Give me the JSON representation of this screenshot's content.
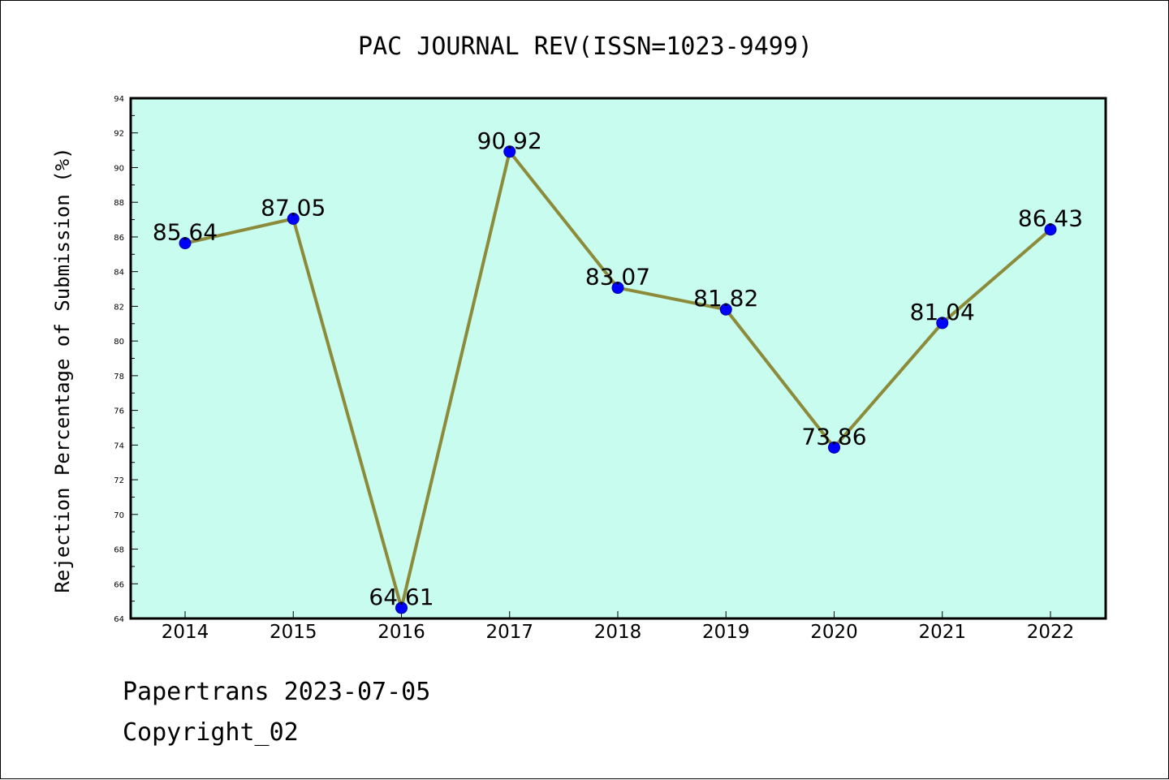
{
  "chart_data": {
    "type": "line",
    "title": "PAC JOURNAL REV(ISSN=1023-9499)",
    "xlabel": "",
    "ylabel": "Rejection Percentage of Submission (%)",
    "categories": [
      "2014",
      "2015",
      "2016",
      "2017",
      "2018",
      "2019",
      "2020",
      "2021",
      "2022"
    ],
    "series": [
      {
        "values": [
          85.64,
          87.05,
          64.61,
          90.92,
          83.07,
          81.82,
          73.86,
          81.04,
          86.43
        ],
        "labels": [
          "85.64",
          "87.05",
          "64.61",
          "90.92",
          "83.07",
          "81.82",
          "73.86",
          "81.04",
          "86.43"
        ]
      }
    ],
    "ylim": [
      64,
      94
    ],
    "yticks": [
      64,
      66,
      68,
      70,
      72,
      74,
      76,
      78,
      80,
      82,
      84,
      86,
      88,
      90,
      92,
      94
    ],
    "grid": false,
    "colors": {
      "plot_background": "#c8fcee",
      "line": "#8b8b3a",
      "marker": "#0000ff"
    }
  },
  "footer": {
    "line1": "Papertrans 2023-07-05",
    "line2": "Copyright_02"
  }
}
